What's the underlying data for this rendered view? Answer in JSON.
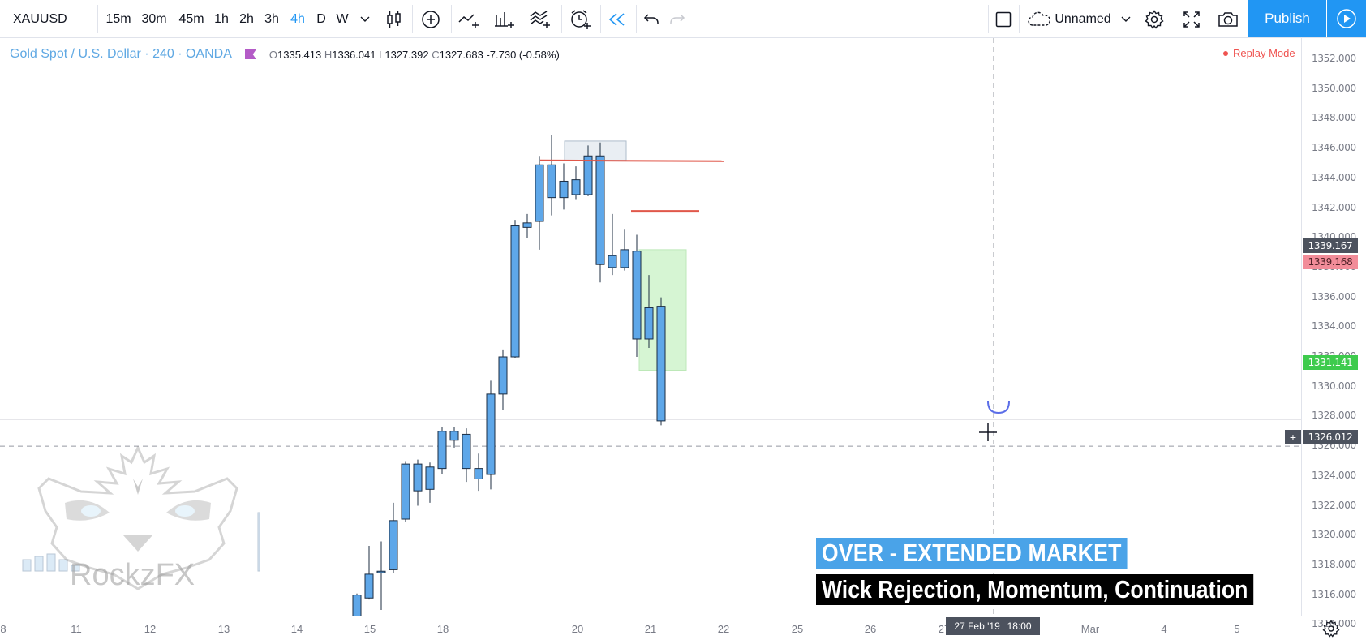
{
  "toolbar": {
    "symbol": "XAUUSD",
    "intervals": [
      "15m",
      "30m",
      "45m",
      "1h",
      "2h",
      "3h",
      "4h",
      "D",
      "W"
    ],
    "active_interval": "4h",
    "layout_name": "Unnamed",
    "publish_label": "Publish"
  },
  "legend": {
    "title": "Gold Spot / U.S. Dollar · 240 · OANDA",
    "open_key": "O",
    "open": "1335.413",
    "high_key": "H",
    "high": "1336.041",
    "low_key": "L",
    "low": "1327.392",
    "close_key": "C",
    "close": "1327.683",
    "change": "-7.730 (-0.58%)",
    "replay": "Replay Mode"
  },
  "price_axis": {
    "ticks": [
      "1352.000",
      "1350.000",
      "1348.000",
      "1346.000",
      "1344.000",
      "1342.000",
      "1340.000",
      "1338.000",
      "1336.000",
      "1334.000",
      "1332.000",
      "1330.000",
      "1328.000",
      "1326.000",
      "1324.000",
      "1322.000",
      "1320.000",
      "1318.000",
      "1316.000",
      "1314.000"
    ],
    "labels": {
      "upper_gray": "1339.167",
      "upper_red": "1339.168",
      "green": "1331.141",
      "crosshair": "1326.012"
    }
  },
  "time_axis": {
    "ticks": [
      "8",
      "11",
      "12",
      "13",
      "14",
      "15",
      "18",
      "20",
      "21",
      "22",
      "25",
      "26",
      "27",
      "Mar",
      "4",
      "5"
    ],
    "crosshair_date": "27 Feb '19",
    "crosshair_time": "18:00"
  },
  "chart_data": {
    "type": "candlestick",
    "symbol": "XAUUSD",
    "timeframe": "240",
    "y_range": [
      1313,
      1353
    ],
    "candles": [
      {
        "o": 1313.6,
        "h": 1314.4,
        "l": 1313.0,
        "c": 1314.3
      },
      {
        "o": 1313.6,
        "h": 1314.3,
        "l": 1313.0,
        "c": 1314.2
      },
      {
        "o": 1314.1,
        "h": 1316.1,
        "l": 1313.8,
        "c": 1316.0
      },
      {
        "o": 1315.8,
        "h": 1319.3,
        "l": 1315.7,
        "c": 1317.4
      },
      {
        "o": 1317.5,
        "h": 1319.6,
        "l": 1315.0,
        "c": 1317.6
      },
      {
        "o": 1317.7,
        "h": 1322.2,
        "l": 1317.5,
        "c": 1321.0
      },
      {
        "o": 1321.1,
        "h": 1325.0,
        "l": 1320.9,
        "c": 1324.8
      },
      {
        "o": 1324.8,
        "h": 1325.1,
        "l": 1322.0,
        "c": 1323.0
      },
      {
        "o": 1323.1,
        "h": 1324.9,
        "l": 1322.2,
        "c": 1324.6
      },
      {
        "o": 1324.5,
        "h": 1327.3,
        "l": 1324.1,
        "c": 1327.0
      },
      {
        "o": 1326.4,
        "h": 1327.3,
        "l": 1325.9,
        "c": 1327.0
      },
      {
        "o": 1326.8,
        "h": 1327.2,
        "l": 1323.6,
        "c": 1324.5
      },
      {
        "o": 1324.5,
        "h": 1325.5,
        "l": 1323.0,
        "c": 1323.8
      },
      {
        "o": 1324.1,
        "h": 1330.4,
        "l": 1323.1,
        "c": 1329.5
      },
      {
        "o": 1329.5,
        "h": 1332.5,
        "l": 1328.4,
        "c": 1332.0
      },
      {
        "o": 1332.0,
        "h": 1341.2,
        "l": 1331.9,
        "c": 1340.8
      },
      {
        "o": 1340.7,
        "h": 1341.6,
        "l": 1340.0,
        "c": 1341.0
      },
      {
        "o": 1341.1,
        "h": 1345.5,
        "l": 1339.2,
        "c": 1344.9
      },
      {
        "o": 1344.9,
        "h": 1346.9,
        "l": 1341.5,
        "c": 1342.7
      },
      {
        "o": 1342.7,
        "h": 1345.0,
        "l": 1341.9,
        "c": 1343.8
      },
      {
        "o": 1343.9,
        "h": 1344.8,
        "l": 1342.6,
        "c": 1342.9
      },
      {
        "o": 1342.9,
        "h": 1346.2,
        "l": 1342.8,
        "c": 1345.5
      },
      {
        "o": 1345.5,
        "h": 1346.4,
        "l": 1337.0,
        "c": 1338.2
      },
      {
        "o": 1338.0,
        "h": 1341.6,
        "l": 1337.5,
        "c": 1338.8
      },
      {
        "o": 1338.0,
        "h": 1340.6,
        "l": 1337.8,
        "c": 1339.2
      },
      {
        "o": 1339.1,
        "h": 1340.2,
        "l": 1332.0,
        "c": 1333.2
      },
      {
        "o": 1333.2,
        "h": 1337.5,
        "l": 1332.6,
        "c": 1335.3
      },
      {
        "o": 1335.4,
        "h": 1336.0,
        "l": 1327.4,
        "c": 1327.7
      }
    ],
    "levels": [
      1345.2,
      1341.8
    ],
    "rect_gray": {
      "from": 1345.2,
      "to": 1346.5
    },
    "rect_green": {
      "from": 1331.1,
      "to": 1339.2
    },
    "crosshair_price": 1326.0
  },
  "captions": {
    "title": "OVER - EXTENDED MARKET",
    "subtitle": "Wick Rejection, Momentum, Continuation"
  },
  "watermark": "RockzFX",
  "colors": {
    "candle_fill": "#5ea7e9",
    "candle_border": "#1c2d42",
    "level_line": "#e0574a",
    "accent": "#2196f3",
    "green_label": "#3ecb4d",
    "red_label": "#f28c99"
  }
}
